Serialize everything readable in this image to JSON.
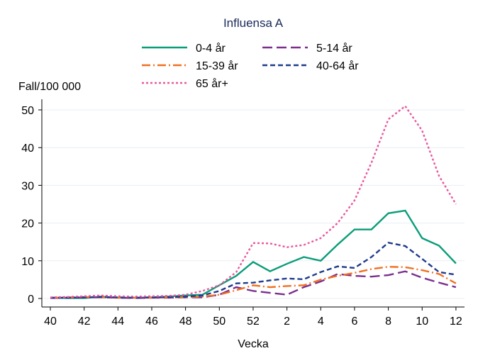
{
  "chart_data": {
    "type": "line",
    "title": "Influensa A",
    "xlabel": "Vecka",
    "ylabel": "Fall/100 000",
    "ylim": [
      0,
      52
    ],
    "yticks": [
      0,
      10,
      20,
      30,
      40,
      50
    ],
    "x": [
      "40",
      "41",
      "42",
      "43",
      "44",
      "45",
      "46",
      "47",
      "48",
      "49",
      "50",
      "51",
      "52",
      "1",
      "2",
      "3",
      "4",
      "5",
      "6",
      "7",
      "8",
      "9",
      "10",
      "11",
      "12"
    ],
    "xticks": [
      "40",
      "42",
      "44",
      "46",
      "48",
      "50",
      "52",
      "2",
      "4",
      "6",
      "8",
      "10",
      "12"
    ],
    "grid": true,
    "legend": "top",
    "series": [
      {
        "name": "0-4 år",
        "color": "#0a9d79",
        "dash": "",
        "values": [
          0.2,
          0.1,
          0.1,
          0.5,
          0.2,
          0.2,
          0.3,
          0.5,
          0.8,
          1.0,
          3.5,
          6,
          9.7,
          7.2,
          9.2,
          11,
          10,
          14.3,
          18.3,
          18.3,
          22.6,
          23.3,
          16,
          14,
          9.3
        ]
      },
      {
        "name": "5-14 år",
        "color": "#7b2f8e",
        "dash": "14,6",
        "values": [
          0.1,
          0.2,
          0.3,
          0.3,
          0.2,
          0.1,
          0.2,
          0.2,
          0.3,
          0.3,
          1,
          3,
          2,
          1.5,
          1,
          3,
          4.5,
          6.5,
          6,
          5.8,
          6.2,
          7.2,
          5.5,
          4.2,
          3
        ]
      },
      {
        "name": "15-39 år",
        "color": "#f07022",
        "dash": "12,4,2,4",
        "values": [
          0.2,
          0.3,
          0.4,
          0.3,
          0.2,
          0.2,
          0.2,
          0.3,
          0.3,
          0.5,
          1,
          2.2,
          3.5,
          3,
          3.3,
          3.5,
          5,
          6,
          6.8,
          7.8,
          8.4,
          8.3,
          7.5,
          6.5,
          4
        ]
      },
      {
        "name": "40-64 år",
        "color": "#1f3b8c",
        "dash": "7,4",
        "values": [
          0.2,
          0.2,
          0.3,
          0.4,
          0.3,
          0.2,
          0.3,
          0.4,
          0.5,
          0.8,
          2,
          4,
          4.2,
          4.8,
          5.3,
          5.1,
          7,
          8.5,
          8.1,
          11,
          14.8,
          13.9,
          10.5,
          7,
          6.3
        ]
      },
      {
        "name": "65 år+",
        "color": "#e8589e",
        "dash": "3,3",
        "values": [
          0.3,
          0.4,
          0.6,
          0.8,
          0.6,
          0.5,
          0.6,
          0.7,
          1,
          2,
          3.5,
          7,
          14.7,
          14.6,
          13.6,
          14.2,
          16,
          20,
          26,
          36,
          47.5,
          51,
          44.5,
          32.5,
          25
        ]
      }
    ]
  }
}
